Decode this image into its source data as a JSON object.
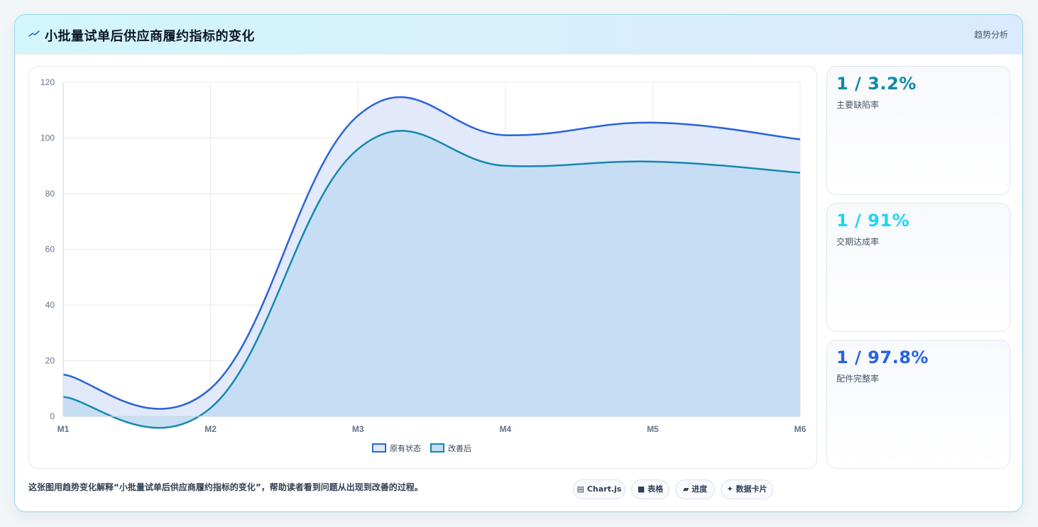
{
  "header": {
    "title": "小批量试单后供应商履约指标的变化",
    "tag": "趋势分析",
    "icon": "trend-line-icon"
  },
  "stats": [
    {
      "value": "1 / 3.2%",
      "label": "主要缺陷率",
      "color": "#0e8aa6"
    },
    {
      "value": "1 / 91%",
      "label": "交期达成率",
      "color": "#22d3ee"
    },
    {
      "value": "1 / 97.8%",
      "label": "配件完整率",
      "color": "#2563eb"
    }
  ],
  "caption": "这张图用趋势变化解释“小批量试单后供应商履约指标的变化”，帮助读者看到问题从出现到改善的过程。",
  "chips": [
    {
      "label": "▤ Chart.js",
      "icon": "chart-icon"
    },
    {
      "label": "■ 表格",
      "icon": "table-icon"
    },
    {
      "label": "▰ 进度",
      "icon": "progress-icon"
    },
    {
      "label": "✦ 数据卡片",
      "icon": "sparkle-icon"
    }
  ],
  "chart_data": {
    "type": "area",
    "categories": [
      "M1",
      "M2",
      "M3",
      "M4",
      "M5",
      "M6"
    ],
    "ylim": [
      0,
      120
    ],
    "yticks": [
      0,
      20,
      40,
      60,
      80,
      100,
      120
    ],
    "grid": true,
    "legend": "bottom-center",
    "series": [
      {
        "name": "原有状态",
        "values": [
          15,
          10,
          108,
          101,
          105.5,
          99.5
        ],
        "color": "#2b63d9",
        "fill": "#dfe8fb"
      },
      {
        "name": "改善后",
        "values": [
          7,
          3,
          96,
          90,
          91.5,
          87.5
        ],
        "color": "#1389ad",
        "fill": "#c5dcf2"
      }
    ]
  }
}
